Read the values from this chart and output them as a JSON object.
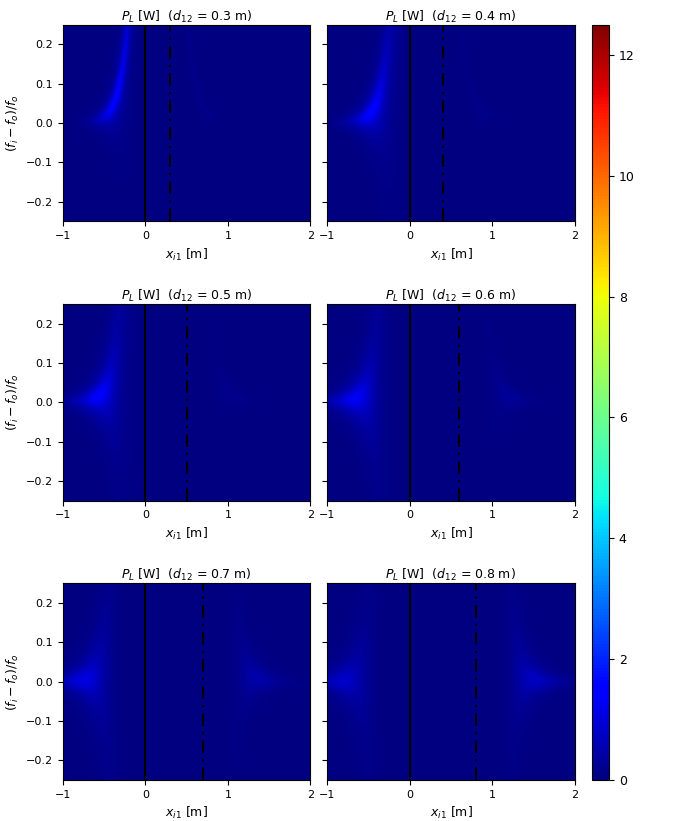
{
  "d12_values": [
    0.3,
    0.4,
    0.5,
    0.6,
    0.7,
    0.8
  ],
  "x_range": [
    -1.0,
    2.0
  ],
  "y_range": [
    -0.25,
    0.25
  ],
  "nx": 400,
  "ny": 200,
  "vmin": 0,
  "vmax": 12.5,
  "colorbar_ticks": [
    0,
    2,
    4,
    6,
    8,
    10,
    12
  ],
  "x_ticks": [
    -1,
    0,
    1,
    2
  ],
  "y_ticks": [
    -0.2,
    -0.1,
    0,
    0.1,
    0.2
  ],
  "solid_line_x": 0.0,
  "Q": 30,
  "P_scale": 12.5,
  "d0": 0.3
}
